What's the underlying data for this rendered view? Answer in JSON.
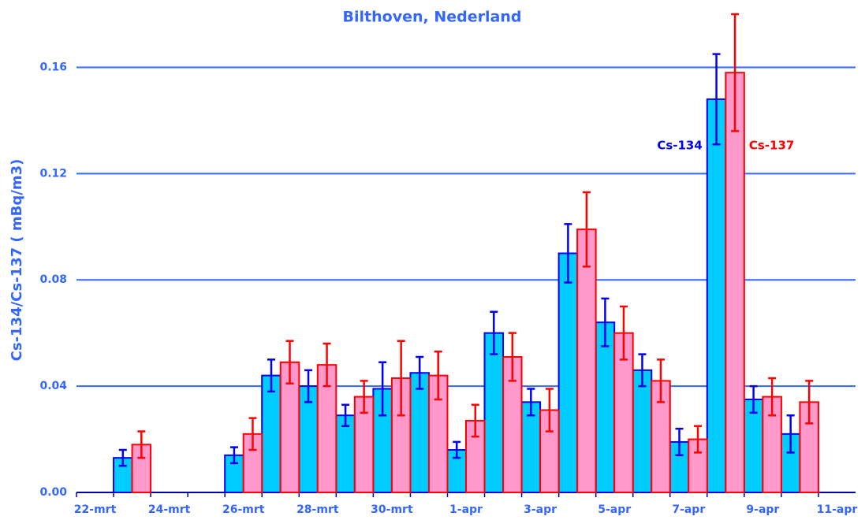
{
  "chart_data": {
    "type": "bar",
    "title": "Bilthoven, Nederland",
    "y_label": "Cs-134/Cs-137 ( mBq/m3)",
    "categories": [
      "22-mrt",
      null,
      "24-mrt",
      null,
      "26-mrt",
      null,
      "28-mrt",
      null,
      "30-mrt",
      null,
      "1-apr",
      null,
      "3-apr",
      null,
      "5-apr",
      null,
      "7-apr",
      null,
      "9-apr",
      null,
      "11-apr"
    ],
    "series": [
      {
        "name": "Cs-134",
        "color": "#00ccff",
        "edge": "#0000ee",
        "values": [
          null,
          0.013,
          null,
          null,
          0.014,
          0.044,
          0.04,
          0.029,
          0.039,
          0.045,
          0.016,
          0.06,
          0.034,
          0.09,
          0.064,
          0.046,
          0.019,
          0.148,
          0.035,
          0.022,
          null
        ],
        "errors": [
          null,
          0.003,
          null,
          null,
          0.003,
          0.006,
          0.006,
          0.004,
          0.01,
          0.006,
          0.003,
          0.008,
          0.005,
          0.011,
          0.009,
          0.006,
          0.005,
          0.017,
          0.005,
          0.007,
          null
        ]
      },
      {
        "name": "Cs-137",
        "color": "#ff99cc",
        "edge": "#ff0000",
        "values": [
          null,
          0.018,
          null,
          null,
          0.022,
          0.049,
          0.048,
          0.036,
          0.043,
          0.044,
          0.027,
          0.051,
          0.031,
          0.099,
          0.06,
          0.042,
          0.02,
          0.158,
          0.036,
          0.034,
          null
        ],
        "errors": [
          null,
          0.005,
          null,
          null,
          0.006,
          0.008,
          0.008,
          0.006,
          0.014,
          0.009,
          0.006,
          0.009,
          0.008,
          0.014,
          0.01,
          0.008,
          0.005,
          0.022,
          0.007,
          0.008,
          null
        ]
      }
    ],
    "ylim": [
      0,
      0.18
    ],
    "yticks": [
      {
        "value": 0,
        "label": "0.00"
      },
      {
        "value": 0.04,
        "label": "0.04"
      },
      {
        "value": 0.08,
        "label": "0.08"
      },
      {
        "value": 0.12,
        "label": "0.12"
      },
      {
        "value": 0.16,
        "label": "0.16"
      }
    ],
    "grid": true,
    "grid_color": "#3366ff"
  }
}
